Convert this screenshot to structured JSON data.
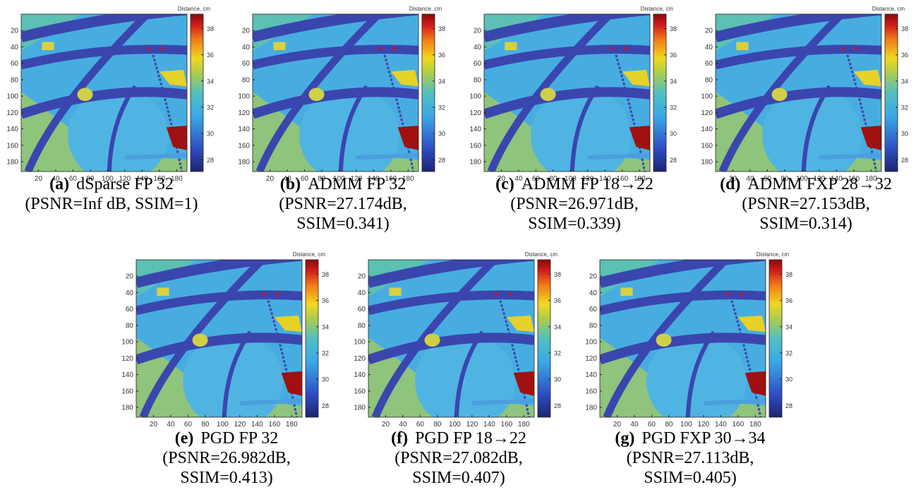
{
  "colorbar_label": "Distance, cm",
  "x_ticks": [
    20,
    40,
    60,
    80,
    100,
    120,
    140,
    160,
    180
  ],
  "y_ticks": [
    20,
    40,
    60,
    80,
    100,
    120,
    140,
    160,
    180
  ],
  "image_range": [
    0,
    192
  ],
  "colorbar_ticks": [
    28,
    30,
    32,
    34,
    36,
    38
  ],
  "colorbar_range": [
    27.1,
    39.1
  ],
  "panels": [
    {
      "label": "(a)",
      "title": "dSparse FP 32",
      "lines": [
        "(PSNR=Inf dB, SSIM=1)"
      ]
    },
    {
      "label": "(b)",
      "title": "ADMM FP 32",
      "lines": [
        "(PSNR=27.174dB,",
        "SSIM=0.341)"
      ]
    },
    {
      "label": "(c)",
      "title": "ADMM FP 18→22",
      "lines": [
        "(PSNR=26.971dB,",
        "SSIM=0.339)"
      ]
    },
    {
      "label": "(d)",
      "title": "ADMM FXP 28→32",
      "lines": [
        "(PSNR=27.153dB,",
        "SSIM=0.314)"
      ]
    },
    {
      "label": "(e)",
      "title": "PGD FP 32",
      "lines": [
        "(PSNR=26.982dB,",
        "SSIM=0.413)"
      ]
    },
    {
      "label": "(f)",
      "title": "PGD FP 18→22",
      "lines": [
        "(PSNR=27.082dB,",
        "SSIM=0.407)"
      ]
    },
    {
      "label": "(g)",
      "title": "PGD FXP 30→34",
      "lines": [
        "(PSNR=27.113dB,",
        "SSIM=0.405)"
      ]
    }
  ]
}
